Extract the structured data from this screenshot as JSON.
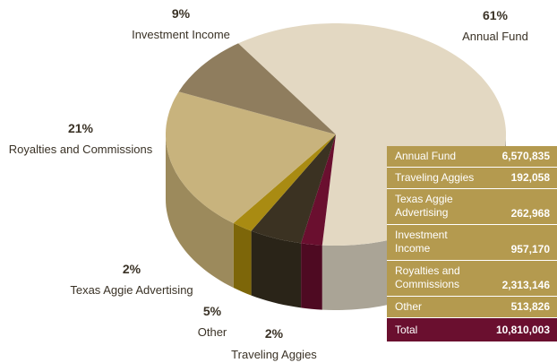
{
  "chart_data": {
    "type": "pie",
    "categories": [
      "Annual Fund",
      "Traveling Aggies",
      "Other",
      "Texas Aggie Advertising",
      "Royalties and Commissions",
      "Investment Income"
    ],
    "values": [
      61,
      2,
      5,
      2,
      21,
      9
    ],
    "value_labels": [
      "61%",
      "2%",
      "5%",
      "2%",
      "21%",
      "9%"
    ],
    "colors": [
      "#e3d8c2",
      "#6a0f2f",
      "#3b3222",
      "#a98b12",
      "#c8b37d",
      "#8f7d5e"
    ],
    "side_colors": [
      "#aaa496",
      "#4e0a22",
      "#2a2418",
      "#7d6609",
      "#9c8a5c",
      "#6e5f45"
    ]
  },
  "table": {
    "rows": [
      [
        "Annual Fund",
        "6,570,835"
      ],
      [
        "Traveling Aggies",
        "192,058"
      ],
      [
        "Texas Aggie Advertising",
        "262,968"
      ],
      [
        "Investment Income",
        "957,170"
      ],
      [
        "Royalties and Commissions",
        "2,313,146"
      ],
      [
        "Other",
        "513,826"
      ]
    ],
    "total": [
      "Total",
      "10,810,003"
    ]
  }
}
